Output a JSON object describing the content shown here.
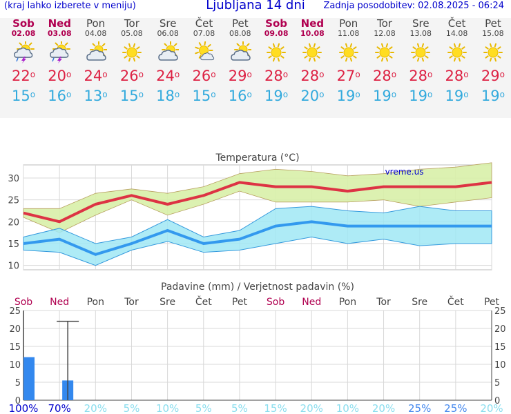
{
  "header": {
    "menu_hint": "(kraj lahko izberete v meniju)",
    "title": "Ljubljana 14 dni",
    "updated": "Zadnja posodobitev: 02.08.2025 - 06:24"
  },
  "days": [
    {
      "name": "Sob",
      "date": "02.08",
      "weekend": true,
      "icon": "sun-cloud-storm-icon",
      "tmax": "22",
      "tmin": "15"
    },
    {
      "name": "Ned",
      "date": "03.08",
      "weekend": true,
      "icon": "sun-cloud-storm-icon",
      "tmax": "20",
      "tmin": "16"
    },
    {
      "name": "Pon",
      "date": "04.08",
      "weekend": false,
      "icon": "sun-cloud-icon",
      "tmax": "24",
      "tmin": "13"
    },
    {
      "name": "Tor",
      "date": "05.08",
      "weekend": false,
      "icon": "sun-icon",
      "tmax": "26",
      "tmin": "15"
    },
    {
      "name": "Sre",
      "date": "06.08",
      "weekend": false,
      "icon": "sun-cloud-icon",
      "tmax": "24",
      "tmin": "18"
    },
    {
      "name": "Čet",
      "date": "07.08",
      "weekend": false,
      "icon": "sun-small-cloud-icon",
      "tmax": "26",
      "tmin": "15"
    },
    {
      "name": "Pet",
      "date": "08.08",
      "weekend": false,
      "icon": "sun-cloud-icon",
      "tmax": "29",
      "tmin": "16"
    },
    {
      "name": "Sob",
      "date": "09.08",
      "weekend": true,
      "icon": "sun-icon",
      "tmax": "28",
      "tmin": "19"
    },
    {
      "name": "Ned",
      "date": "10.08",
      "weekend": true,
      "icon": "sun-icon",
      "tmax": "28",
      "tmin": "20"
    },
    {
      "name": "Pon",
      "date": "11.08",
      "weekend": false,
      "icon": "sun-icon",
      "tmax": "27",
      "tmin": "19"
    },
    {
      "name": "Tor",
      "date": "12.08",
      "weekend": false,
      "icon": "sun-icon",
      "tmax": "28",
      "tmin": "19"
    },
    {
      "name": "Sre",
      "date": "13.08",
      "weekend": false,
      "icon": "sun-icon",
      "tmax": "28",
      "tmin": "19"
    },
    {
      "name": "Čet",
      "date": "14.08",
      "weekend": false,
      "icon": "sun-icon",
      "tmax": "28",
      "tmin": "19"
    },
    {
      "name": "Pet",
      "date": "15.08",
      "weekend": false,
      "icon": "sun-icon",
      "tmax": "29",
      "tmin": "19"
    }
  ],
  "chart_data": [
    {
      "type": "line",
      "title": "Temperatura (°C)",
      "watermark": "vreme.us",
      "categories": [
        "Sob",
        "Ned",
        "Pon",
        "Tor",
        "Sre",
        "Čet",
        "Pet",
        "Sob",
        "Ned",
        "Pon",
        "Tor",
        "Sre",
        "Čet",
        "Pet"
      ],
      "ylim": [
        9,
        33
      ],
      "yticks": [
        10,
        15,
        20,
        25,
        30
      ],
      "x": [
        0,
        1,
        2,
        3,
        4,
        5,
        6,
        7,
        8,
        9,
        10,
        11,
        12,
        13,
        14
      ],
      "tmax_series": {
        "values": [
          22,
          20,
          24,
          26,
          24,
          26,
          29,
          28,
          28,
          27,
          28,
          28,
          28,
          29
        ],
        "band_high": [
          23,
          23,
          26.5,
          27.5,
          26.5,
          28,
          31,
          32,
          31.5,
          30.5,
          31,
          32,
          32.5,
          33.5
        ],
        "band_low": [
          21,
          17.5,
          21.5,
          25,
          21.5,
          24,
          27,
          24.5,
          24.5,
          24.5,
          25,
          23.5,
          24.5,
          25.5
        ],
        "color": "#dd3344",
        "band_color": "#d8f0a8"
      },
      "tmin_series": {
        "values": [
          15,
          16,
          12.5,
          15,
          18,
          15,
          16,
          19,
          20,
          19,
          19,
          19,
          19,
          19
        ],
        "band_high": [
          16.5,
          18.5,
          15,
          16.5,
          20.5,
          16.5,
          18,
          23,
          23.5,
          22.5,
          22,
          23.5,
          22.5,
          22.5
        ],
        "band_low": [
          13.5,
          13,
          10,
          13.5,
          15.5,
          13,
          13.5,
          15,
          16.5,
          15,
          16,
          14.5,
          15,
          15
        ],
        "color": "#3399ee",
        "band_color": "#a0e8f4"
      }
    },
    {
      "type": "bar",
      "title": "Padavine (mm) / Verjetnost padavin (%)",
      "categories": [
        "Sob",
        "Ned",
        "Pon",
        "Tor",
        "Sre",
        "Čet",
        "Pet",
        "Sob",
        "Ned",
        "Pon",
        "Tor",
        "Sre",
        "Čet",
        "Pet"
      ],
      "weekend": [
        true,
        true,
        false,
        false,
        false,
        false,
        false,
        true,
        true,
        false,
        false,
        false,
        false,
        false
      ],
      "ylim": [
        0,
        25
      ],
      "yticks": [
        0,
        5,
        10,
        15,
        20,
        25
      ],
      "values": [
        12,
        5.5,
        0,
        0,
        0,
        0,
        0,
        0,
        0,
        0,
        0,
        0,
        0,
        0
      ],
      "error_max": [
        null,
        22,
        null,
        null,
        null,
        null,
        null,
        null,
        null,
        null,
        null,
        null,
        null,
        null
      ],
      "probability": [
        "100%",
        "70%",
        "20%",
        "5%",
        "10%",
        "5%",
        "5%",
        "15%",
        "20%",
        "10%",
        "20%",
        "25%",
        "25%",
        "20%"
      ],
      "probability_colors": [
        "#0000cc",
        "#0000cc",
        "#88ddee",
        "#88ddee",
        "#88ddee",
        "#88ddee",
        "#88ddee",
        "#88ddee",
        "#88ddee",
        "#88ddee",
        "#88ddee",
        "#4488ee",
        "#4488ee",
        "#88ddee"
      ],
      "bar_color": "#3388ee"
    }
  ]
}
